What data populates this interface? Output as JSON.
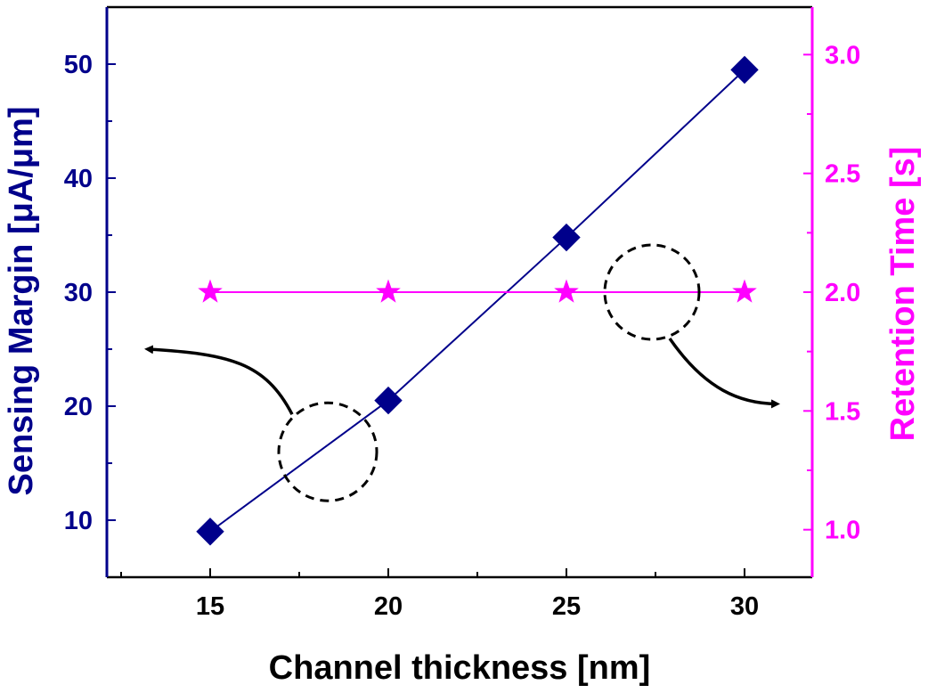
{
  "chart_data": {
    "type": "line",
    "xlabel": "Channel thickness [nm]",
    "ylabel_left": "Sensing Margin [μA/μm]",
    "ylabel_right": "Retention Time [s]",
    "x": [
      15,
      20,
      25,
      30
    ],
    "xlim": [
      12.1,
      31.9
    ],
    "xticks": [
      15,
      20,
      25,
      30
    ],
    "xtick_labels": [
      "15",
      "20",
      "25",
      "30"
    ],
    "ylim_left": [
      5,
      55
    ],
    "yticks_left": [
      10,
      20,
      30,
      40,
      50
    ],
    "ytick_labels_left": [
      "10",
      "20",
      "30",
      "40",
      "50"
    ],
    "ylim_right": [
      0.8,
      3.2
    ],
    "yticks_right": [
      1.0,
      1.5,
      2.0,
      2.5,
      3.0
    ],
    "ytick_labels_right": [
      "1.0",
      "1.5",
      "2.0",
      "2.5",
      "3.0"
    ],
    "grid": false,
    "legend": "none",
    "series": [
      {
        "axis": "left",
        "marker": "diamond",
        "color": "#00008b",
        "values": [
          9,
          20.5,
          34.8,
          49.5
        ]
      },
      {
        "axis": "right",
        "marker": "star",
        "color": "#ff00ff",
        "values": [
          2.0,
          2.0,
          2.0,
          2.0
        ]
      }
    ],
    "annotations": [
      {
        "shape": "dashed-circle",
        "points_to": "left axis",
        "cx": 18.3,
        "cy": 16,
        "axis": "left"
      },
      {
        "shape": "dashed-circle",
        "points_to": "right axis",
        "cx": 27.4,
        "cy": 30,
        "axis": "left"
      }
    ],
    "colors": {
      "left_axis": "#00008b",
      "right_axis": "#ff00ff",
      "frame": "#000000"
    }
  }
}
